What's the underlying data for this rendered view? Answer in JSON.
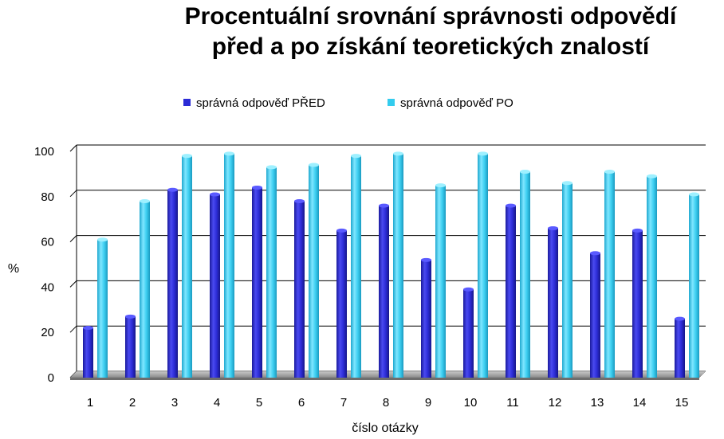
{
  "chart_data": {
    "type": "bar",
    "title_line1": "Procentuální srovnání správnosti odpovědí",
    "title_line2": "před a po získání teoretických  znalostí",
    "xlabel": "číslo otázky",
    "ylabel": "%",
    "ylim": [
      0,
      100
    ],
    "yticks": [
      "0",
      "20",
      "40",
      "60",
      "80",
      "100"
    ],
    "grid": true,
    "legend_position": "top",
    "categories": [
      "1",
      "2",
      "3",
      "4",
      "5",
      "6",
      "7",
      "8",
      "9",
      "10",
      "11",
      "12",
      "13",
      "14",
      "15"
    ],
    "series": [
      {
        "name": "správná odpověď PŘED",
        "color": "#2b2bd6",
        "values": [
          22,
          27,
          83,
          81,
          84,
          78,
          65,
          76,
          52,
          39,
          76,
          66,
          55,
          65,
          26
        ]
      },
      {
        "name": "správná odpověď PO",
        "color": "#33ccee",
        "values": [
          61,
          78,
          98,
          99,
          93,
          94,
          98,
          99,
          85,
          99,
          91,
          86,
          91,
          89,
          81
        ]
      }
    ]
  }
}
